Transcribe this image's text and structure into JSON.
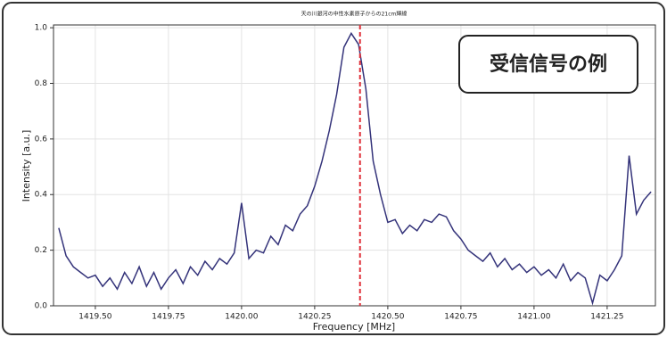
{
  "chart_data": {
    "type": "line",
    "title": "天の川銀河の中性水素原子からの21cm輝線",
    "annotation": "受信信号の例",
    "x_label": "Frequency [MHz]",
    "y_label": "Intensity [a.u.]",
    "xlim": [
      1419.357,
      1421.415
    ],
    "ylim": [
      0,
      1.01
    ],
    "xticks": [
      {
        "value": 1419.5,
        "label": "1419.50"
      },
      {
        "value": 1419.75,
        "label": "1419.75"
      },
      {
        "value": 1420.0,
        "label": "1420.00"
      },
      {
        "value": 1420.25,
        "label": "1420.25"
      },
      {
        "value": 1420.5,
        "label": "1420.50"
      },
      {
        "value": 1420.75,
        "label": "1420.75"
      },
      {
        "value": 1421.0,
        "label": "1421.00"
      },
      {
        "value": 1421.25,
        "label": "1421.25"
      }
    ],
    "yticks": [
      {
        "value": 0,
        "label": "0.0"
      },
      0.2,
      0.4,
      0.6,
      0.8,
      {
        "value": 1,
        "label": "1.0"
      }
    ],
    "grid": true,
    "vline": {
      "x": 1420.405,
      "color": "#e0303a"
    },
    "x": [
      1419.375,
      1419.4,
      1419.425,
      1419.45,
      1419.475,
      1419.5,
      1419.525,
      1419.55,
      1419.575,
      1419.6,
      1419.625,
      1419.65,
      1419.675,
      1419.7,
      1419.725,
      1419.75,
      1419.775,
      1419.8,
      1419.825,
      1419.85,
      1419.875,
      1419.9,
      1419.925,
      1419.95,
      1419.975,
      1420.0,
      1420.025,
      1420.05,
      1420.075,
      1420.1,
      1420.125,
      1420.15,
      1420.175,
      1420.2,
      1420.225,
      1420.25,
      1420.275,
      1420.3,
      1420.325,
      1420.35,
      1420.375,
      1420.4,
      1420.425,
      1420.45,
      1420.475,
      1420.5,
      1420.525,
      1420.55,
      1420.575,
      1420.6,
      1420.625,
      1420.65,
      1420.675,
      1420.7,
      1420.725,
      1420.75,
      1420.775,
      1420.8,
      1420.825,
      1420.85,
      1420.875,
      1420.9,
      1420.925,
      1420.95,
      1420.975,
      1421.0,
      1421.025,
      1421.05,
      1421.075,
      1421.1,
      1421.125,
      1421.15,
      1421.175,
      1421.2,
      1421.225,
      1421.25,
      1421.275,
      1421.3,
      1421.325,
      1421.35,
      1421.375,
      1421.4
    ],
    "series": [
      {
        "color": "#34337a",
        "values": [
          0.28,
          0.18,
          0.14,
          0.12,
          0.1,
          0.11,
          0.07,
          0.1,
          0.06,
          0.12,
          0.08,
          0.14,
          0.07,
          0.12,
          0.06,
          0.1,
          0.13,
          0.08,
          0.14,
          0.11,
          0.16,
          0.13,
          0.17,
          0.15,
          0.19,
          0.37,
          0.17,
          0.2,
          0.19,
          0.25,
          0.22,
          0.29,
          0.27,
          0.33,
          0.36,
          0.43,
          0.52,
          0.63,
          0.76,
          0.93,
          0.98,
          0.94,
          0.78,
          0.52,
          0.4,
          0.3,
          0.31,
          0.26,
          0.29,
          0.27,
          0.31,
          0.3,
          0.33,
          0.32,
          0.27,
          0.24,
          0.2,
          0.18,
          0.16,
          0.19,
          0.14,
          0.17,
          0.13,
          0.15,
          0.12,
          0.14,
          0.11,
          0.13,
          0.1,
          0.15,
          0.09,
          0.12,
          0.1,
          0.01,
          0.11,
          0.09,
          0.13,
          0.18,
          0.54,
          0.33,
          0.38,
          0.41
        ]
      }
    ]
  }
}
